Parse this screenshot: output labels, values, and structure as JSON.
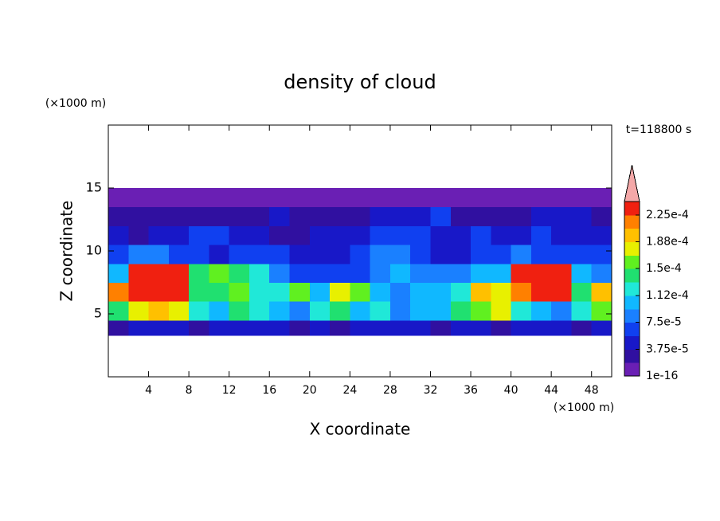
{
  "chart_data": {
    "type": "contour",
    "title": "density of cloud",
    "time_label": "t=118800 s",
    "x_label": "X coordinate",
    "x_unit": "(×1000 m)",
    "y_label": "Z coordinate",
    "y_unit": "(×1000 m)",
    "xlim": [
      0,
      50
    ],
    "ylim": [
      0,
      20
    ],
    "xticks": [
      4,
      8,
      12,
      16,
      20,
      24,
      28,
      32,
      36,
      40,
      44,
      48
    ],
    "yticks": [
      5,
      10,
      15
    ],
    "x_edges": [
      0,
      2,
      4,
      6,
      8,
      10,
      12,
      14,
      16,
      18,
      20,
      22,
      24,
      26,
      28,
      30,
      32,
      34,
      36,
      38,
      40,
      42,
      44,
      46,
      48,
      50
    ],
    "y_edges": [
      3.3,
      4.5,
      6,
      7.5,
      9,
      10.5,
      12,
      13.5,
      15
    ],
    "z": [
      [
        2.8e-05,
        4.7e-05,
        4.7e-05,
        4.7e-05,
        2.8e-05,
        4.7e-05,
        4.7e-05,
        4.7e-05,
        4.7e-05,
        2.8e-05,
        4.7e-05,
        2.8e-05,
        4.7e-05,
        4.7e-05,
        4.7e-05,
        4.7e-05,
        2.8e-05,
        4.7e-05,
        4.7e-05,
        2.8e-05,
        4.7e-05,
        4.7e-05,
        4.7e-05,
        2.8e-05,
        4.7e-05
      ],
      [
        0.00014,
        0.000178,
        0.000197,
        0.000178,
        0.000122,
        0.000103,
        0.00014,
        0.000122,
        0.000103,
        8.4e-05,
        0.000122,
        0.00014,
        0.000103,
        0.000122,
        8.4e-05,
        0.000103,
        0.000103,
        0.00014,
        0.000159,
        0.000178,
        0.000122,
        0.000103,
        8.4e-05,
        0.000122,
        0.000159
      ],
      [
        0.000216,
        0.000234,
        0.000234,
        0.000234,
        0.00014,
        0.00014,
        0.000159,
        0.000122,
        0.000122,
        0.000159,
        0.000103,
        0.000178,
        0.000159,
        0.000103,
        8.4e-05,
        0.000103,
        0.000103,
        0.000122,
        0.000197,
        0.000178,
        0.000216,
        0.000234,
        0.000234,
        0.00014,
        0.000197
      ],
      [
        0.000103,
        0.000234,
        0.000234,
        0.000234,
        0.00014,
        0.000159,
        0.00014,
        0.000122,
        8.4e-05,
        6.6e-05,
        6.6e-05,
        6.6e-05,
        6.6e-05,
        8.4e-05,
        0.000103,
        8.4e-05,
        8.4e-05,
        8.4e-05,
        0.000103,
        0.000103,
        0.000234,
        0.000234,
        0.000234,
        0.000103,
        8.4e-05
      ],
      [
        6.6e-05,
        8.4e-05,
        8.4e-05,
        6.6e-05,
        6.6e-05,
        4.7e-05,
        6.6e-05,
        6.6e-05,
        6.6e-05,
        4.7e-05,
        4.7e-05,
        4.7e-05,
        6.6e-05,
        8.4e-05,
        8.4e-05,
        6.6e-05,
        4.7e-05,
        4.7e-05,
        6.6e-05,
        6.6e-05,
        8.4e-05,
        6.6e-05,
        6.6e-05,
        6.6e-05,
        6.6e-05
      ],
      [
        4.7e-05,
        2.8e-05,
        4.7e-05,
        4.7e-05,
        6.6e-05,
        6.6e-05,
        4.7e-05,
        4.7e-05,
        2.8e-05,
        2.8e-05,
        4.7e-05,
        4.7e-05,
        4.7e-05,
        6.6e-05,
        6.6e-05,
        6.6e-05,
        4.7e-05,
        4.7e-05,
        6.6e-05,
        4.7e-05,
        4.7e-05,
        6.6e-05,
        4.7e-05,
        4.7e-05,
        4.7e-05
      ],
      [
        2.8e-05,
        2.8e-05,
        2.8e-05,
        2.8e-05,
        2.8e-05,
        2.8e-05,
        2.8e-05,
        2.8e-05,
        4.7e-05,
        2.8e-05,
        2.8e-05,
        2.8e-05,
        2.8e-05,
        4.7e-05,
        4.7e-05,
        4.7e-05,
        6.6e-05,
        2.8e-05,
        2.8e-05,
        2.8e-05,
        2.8e-05,
        4.7e-05,
        4.7e-05,
        4.7e-05,
        2.8e-05
      ],
      [
        5e-06,
        5e-06,
        5e-06,
        5e-06,
        5e-06,
        5e-06,
        5e-06,
        5e-06,
        5e-06,
        5e-06,
        5e-06,
        5e-06,
        5e-06,
        5e-06,
        5e-06,
        5e-06,
        5e-06,
        5e-06,
        5e-06,
        5e-06,
        5e-06,
        5e-06,
        5e-06,
        5e-06,
        5e-06
      ]
    ],
    "colorbar": {
      "levels": [
        1e-16,
        1.875e-05,
        3.75e-05,
        5.625e-05,
        7.5e-05,
        9.375e-05,
        0.0001125,
        0.00013125,
        0.00015,
        0.00016875,
        0.0001875,
        0.00020625,
        0.000225,
        0.00024375
      ],
      "colors": [
        "#6a1fb4",
        "#3010a0",
        "#1818c8",
        "#1040f0",
        "#1a80ff",
        "#10b8ff",
        "#20e8d8",
        "#20e070",
        "#60f020",
        "#e8f000",
        "#ffc000",
        "#ff8000",
        "#f02010"
      ],
      "extend_color": "#f4a8a8",
      "ticks": [
        1e-16,
        {
          "value": 3.75e-05,
          "label": "3.75e-5"
        },
        {
          "value": 7.5e-05,
          "label": "7.5e-5"
        },
        {
          "value": 0.0001125,
          "label": "1.12e-4"
        },
        {
          "value": 0.00015,
          "label": "1.5e-4"
        },
        {
          "value": 0.0001875,
          "label": "1.88e-4"
        },
        {
          "value": 0.000225,
          "label": "2.25e-4"
        }
      ]
    }
  }
}
